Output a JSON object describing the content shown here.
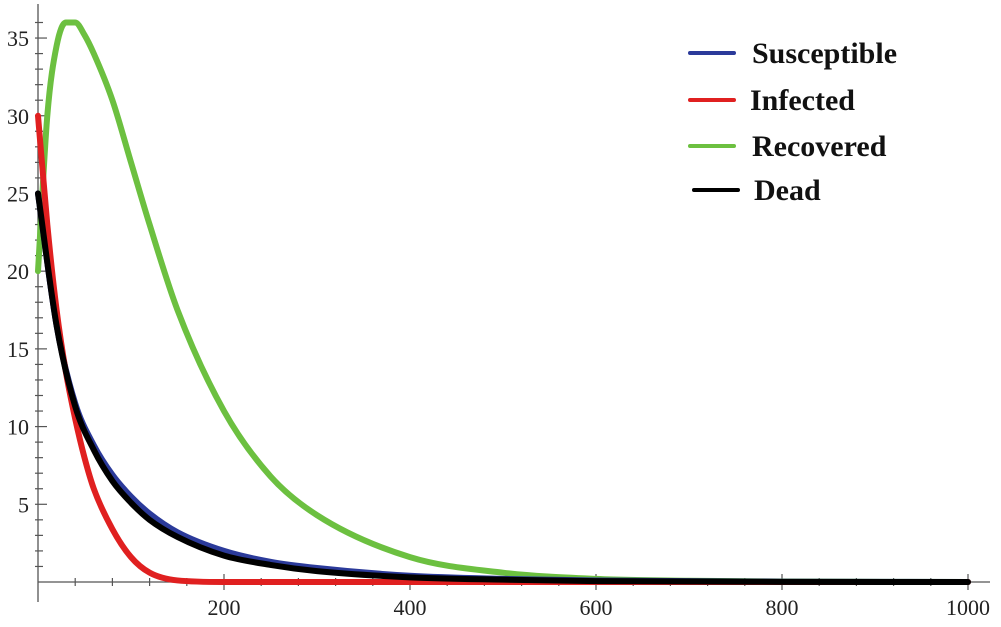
{
  "chart_data": {
    "type": "line",
    "title": "",
    "xlabel": "",
    "ylabel": "",
    "xlim": [
      0,
      1000
    ],
    "ylim": [
      0,
      37
    ],
    "x_ticks": [
      200,
      400,
      600,
      800,
      1000
    ],
    "y_ticks": [
      5,
      10,
      15,
      20,
      25,
      30,
      35
    ],
    "x_tick_labels": [
      "200",
      "400",
      "600",
      "800",
      "1000"
    ],
    "y_tick_labels": [
      "5",
      "10",
      "15",
      "20",
      "25",
      "30",
      "35"
    ],
    "grid": false,
    "legend_position": "top-right",
    "series": [
      {
        "name": "Susceptible",
        "color": "#2b3a9a",
        "x": [
          0,
          20,
          40,
          60,
          80,
          100,
          120,
          150,
          200,
          250,
          300,
          400,
          500,
          600,
          800,
          1000
        ],
        "y": [
          25,
          16.5,
          11.5,
          8.8,
          6.9,
          5.5,
          4.4,
          3.2,
          2.0,
          1.3,
          0.9,
          0.4,
          0.2,
          0.1,
          0.02,
          0
        ]
      },
      {
        "name": "Infected",
        "color": "#e02020",
        "x": [
          0,
          10,
          20,
          30,
          40,
          50,
          60,
          80,
          100,
          120,
          150,
          200,
          300,
          1000
        ],
        "y": [
          30,
          23,
          17.5,
          13.5,
          10.5,
          8,
          6,
          3.4,
          1.6,
          0.6,
          0.1,
          0,
          0,
          0
        ]
      },
      {
        "name": "Recovered",
        "color": "#6cc040",
        "x": [
          0,
          10,
          20,
          30,
          40,
          50,
          60,
          80,
          100,
          120,
          150,
          200,
          250,
          300,
          400,
          500,
          600,
          700,
          800,
          1000
        ],
        "y": [
          20,
          30,
          34.5,
          36,
          36,
          35.2,
          34,
          31,
          27,
          23,
          17.5,
          11,
          6.8,
          4.3,
          1.6,
          0.6,
          0.2,
          0.08,
          0.03,
          0
        ]
      },
      {
        "name": "Dead",
        "color": "#000000",
        "x": [
          0,
          20,
          40,
          60,
          80,
          100,
          120,
          150,
          200,
          250,
          300,
          400,
          500,
          600,
          800,
          1000
        ],
        "y": [
          25,
          16.5,
          11.3,
          8.5,
          6.5,
          5.1,
          4.0,
          2.9,
          1.7,
          1.1,
          0.7,
          0.3,
          0.15,
          0.06,
          0.01,
          0
        ]
      }
    ]
  },
  "legend": {
    "items": [
      {
        "label": "Susceptible",
        "color": "#2b3a9a"
      },
      {
        "label": "Infected",
        "color": "#e02020"
      },
      {
        "label": "Recovered",
        "color": "#6cc040"
      },
      {
        "label": "Dead",
        "color": "#000000"
      }
    ]
  }
}
